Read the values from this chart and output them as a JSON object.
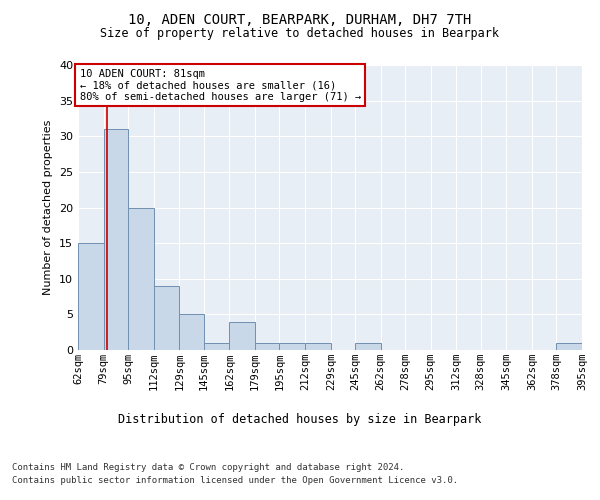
{
  "title": "10, ADEN COURT, BEARPARK, DURHAM, DH7 7TH",
  "subtitle": "Size of property relative to detached houses in Bearpark",
  "xlabel": "Distribution of detached houses by size in Bearpark",
  "ylabel": "Number of detached properties",
  "bin_edges": [
    62,
    79,
    95,
    112,
    129,
    145,
    162,
    179,
    195,
    212,
    229,
    245,
    262,
    278,
    295,
    312,
    328,
    345,
    362,
    378,
    395
  ],
  "bin_labels": [
    "62sqm",
    "79sqm",
    "95sqm",
    "112sqm",
    "129sqm",
    "145sqm",
    "162sqm",
    "179sqm",
    "195sqm",
    "212sqm",
    "229sqm",
    "245sqm",
    "262sqm",
    "278sqm",
    "295sqm",
    "312sqm",
    "328sqm",
    "345sqm",
    "362sqm",
    "378sqm",
    "395sqm"
  ],
  "counts": [
    15,
    31,
    20,
    9,
    5,
    1,
    4,
    1,
    1,
    1,
    0,
    1,
    0,
    0,
    0,
    0,
    0,
    0,
    0,
    1
  ],
  "bar_color": "#c8d8e8",
  "bar_edge_color": "#7090b0",
  "property_size": 81,
  "property_label": "10 ADEN COURT: 81sqm",
  "annotation_line1": "← 18% of detached houses are smaller (16)",
  "annotation_line2": "80% of semi-detached houses are larger (71) →",
  "vline_color": "#cc0000",
  "ylim": [
    0,
    40
  ],
  "yticks": [
    0,
    5,
    10,
    15,
    20,
    25,
    30,
    35,
    40
  ],
  "plot_bg_color": "#e8eef5",
  "footer_line1": "Contains HM Land Registry data © Crown copyright and database right 2024.",
  "footer_line2": "Contains public sector information licensed under the Open Government Licence v3.0."
}
